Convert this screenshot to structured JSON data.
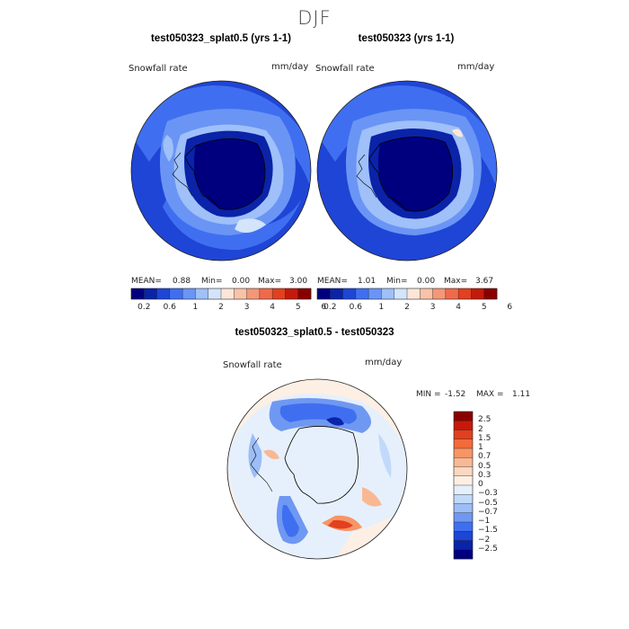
{
  "page": {
    "season": "DJF"
  },
  "maps": [
    {
      "title": "test050323_splat0.5 (yrs 1-1)",
      "variable": "Snowfall rate",
      "units": "mm/day",
      "mean_label": "MEAN=",
      "mean": "0.88",
      "min_label": "Min=",
      "min": "0.00",
      "max_label": "Max=",
      "max": "3.00"
    },
    {
      "title": "test050323 (yrs 1-1)",
      "variable": "Snowfall rate",
      "units": "mm/day",
      "mean_label": "MEAN=",
      "mean": "1.01",
      "min_label": "Min=",
      "min": "0.00",
      "max_label": "Max=",
      "max": "3.67"
    }
  ],
  "abs_colorbar": {
    "colors": [
      "#00007f",
      "#0a23a8",
      "#1f45d6",
      "#3f6ff0",
      "#6a95f5",
      "#9fc0f8",
      "#d3e4fb",
      "#fde6d8",
      "#f8c3a8",
      "#f49777",
      "#ef6a4b",
      "#e2401f",
      "#c41a0b",
      "#8a0000"
    ],
    "ticks": [
      "0.2",
      "0.6",
      "1",
      "2",
      "3",
      "4",
      "5",
      "6"
    ]
  },
  "diff": {
    "title": "test050323_splat0.5 - test050323",
    "variable": "Snowfall rate",
    "units": "mm/day",
    "min_label": "MIN =",
    "min": "-1.52",
    "max_label": "MAX =",
    "max": "1.11",
    "colorbar": {
      "colors": [
        "#8a0000",
        "#c41a0b",
        "#e2401f",
        "#f46a3a",
        "#f79566",
        "#f9b894",
        "#fbd8c0",
        "#fdefe4",
        "#e6f0fc",
        "#c3d9f9",
        "#9cbdf6",
        "#6f98f2",
        "#3f6ff0",
        "#1f45d6",
        "#0a23a8",
        "#00007f"
      ],
      "labels": [
        "2.5",
        "2",
        "1.5",
        "1",
        "0.7",
        "0.5",
        "0.3",
        "0",
        "−0.3",
        "−0.5",
        "−0.7",
        "−1",
        "−1.5",
        "−2",
        "−2.5"
      ]
    }
  }
}
